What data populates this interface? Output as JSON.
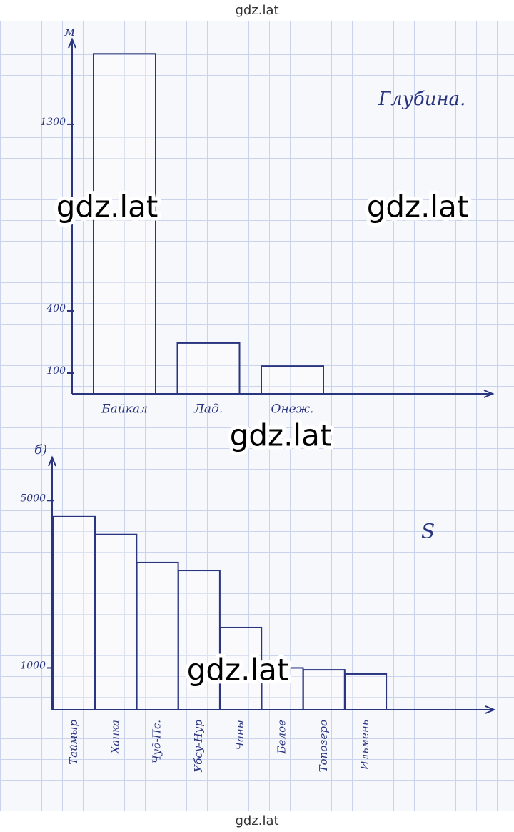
{
  "header": "gdz.lat",
  "footer": "gdz.lat",
  "watermarks": [
    "gdz.lat",
    "gdz.lat",
    "gdz.lat",
    "gdz.lat"
  ],
  "chart_data": [
    {
      "type": "bar",
      "y_label": "м",
      "annotation": "Глубина.",
      "categories": [
        "Байкал",
        "Лад.",
        "Онеж."
      ],
      "values": [
        1640,
        245,
        134
      ],
      "ylim": [
        0,
        1710
      ],
      "yticks": [
        100,
        400,
        1300
      ],
      "color": "#2a3580"
    },
    {
      "type": "bar",
      "panel_label": "б)",
      "annotation": "S",
      "categories": [
        "Таймыр",
        "Ханка",
        "Чуд-Пс.",
        "Убсу-Нур",
        "Чаны",
        "Белое",
        "Топозеро",
        "Ильмень"
      ],
      "values": [
        4615,
        4190,
        3520,
        3330,
        1965,
        1000,
        955,
        855
      ],
      "ylim": [
        0,
        6030
      ],
      "yticks": [
        1000,
        5000
      ],
      "color": "#2a3580"
    }
  ]
}
